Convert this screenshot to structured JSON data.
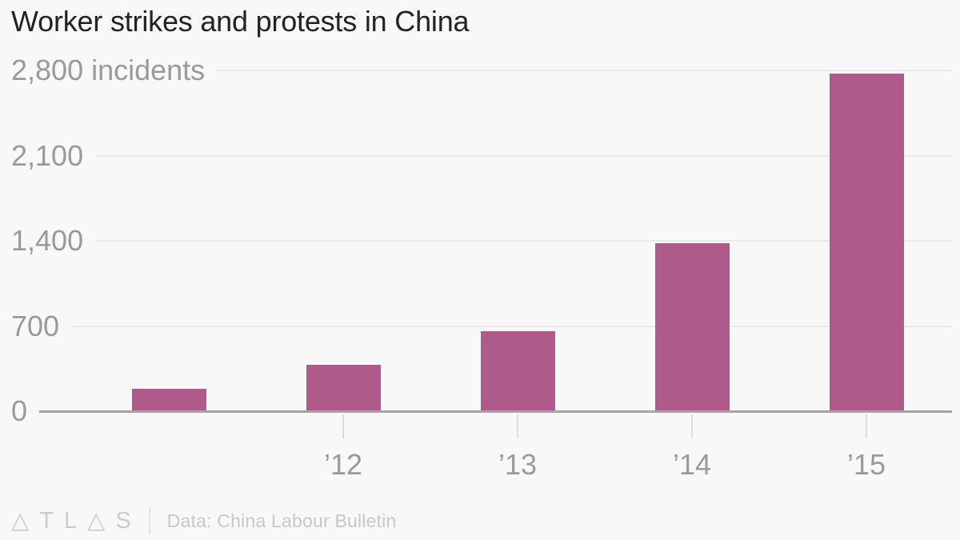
{
  "title": "Worker strikes and protests in China",
  "colors": {
    "background": "#f8f8f8",
    "bar": "#ae5a8b",
    "gridline": "#eaeaea",
    "axis_line": "#a5a5a5",
    "axis_label": "#9a9a9a",
    "title_text": "#232323",
    "footer_text": "#c8c8c8"
  },
  "footer": {
    "logo": "ATLAS",
    "source": "Data: China Labour Bulletin"
  },
  "chart_data": {
    "type": "bar",
    "title": "Worker strikes and protests in China",
    "unit_label": "incidents",
    "categories": [
      "",
      "’12",
      "’13",
      "’14",
      "’15"
    ],
    "values": [
      185,
      382,
      656,
      1379,
      2774
    ],
    "ylim": [
      0,
      2800
    ],
    "yticks": [
      {
        "value": 2800,
        "label": "2,800 incidents"
      },
      {
        "value": 2100,
        "label": "2,100"
      },
      {
        "value": 1400,
        "label": "1,400"
      },
      {
        "value": 700,
        "label": "700"
      },
      {
        "value": 0,
        "label": "0"
      }
    ],
    "grid": true,
    "legend": false,
    "source": "Data: China Labour Bulletin"
  }
}
